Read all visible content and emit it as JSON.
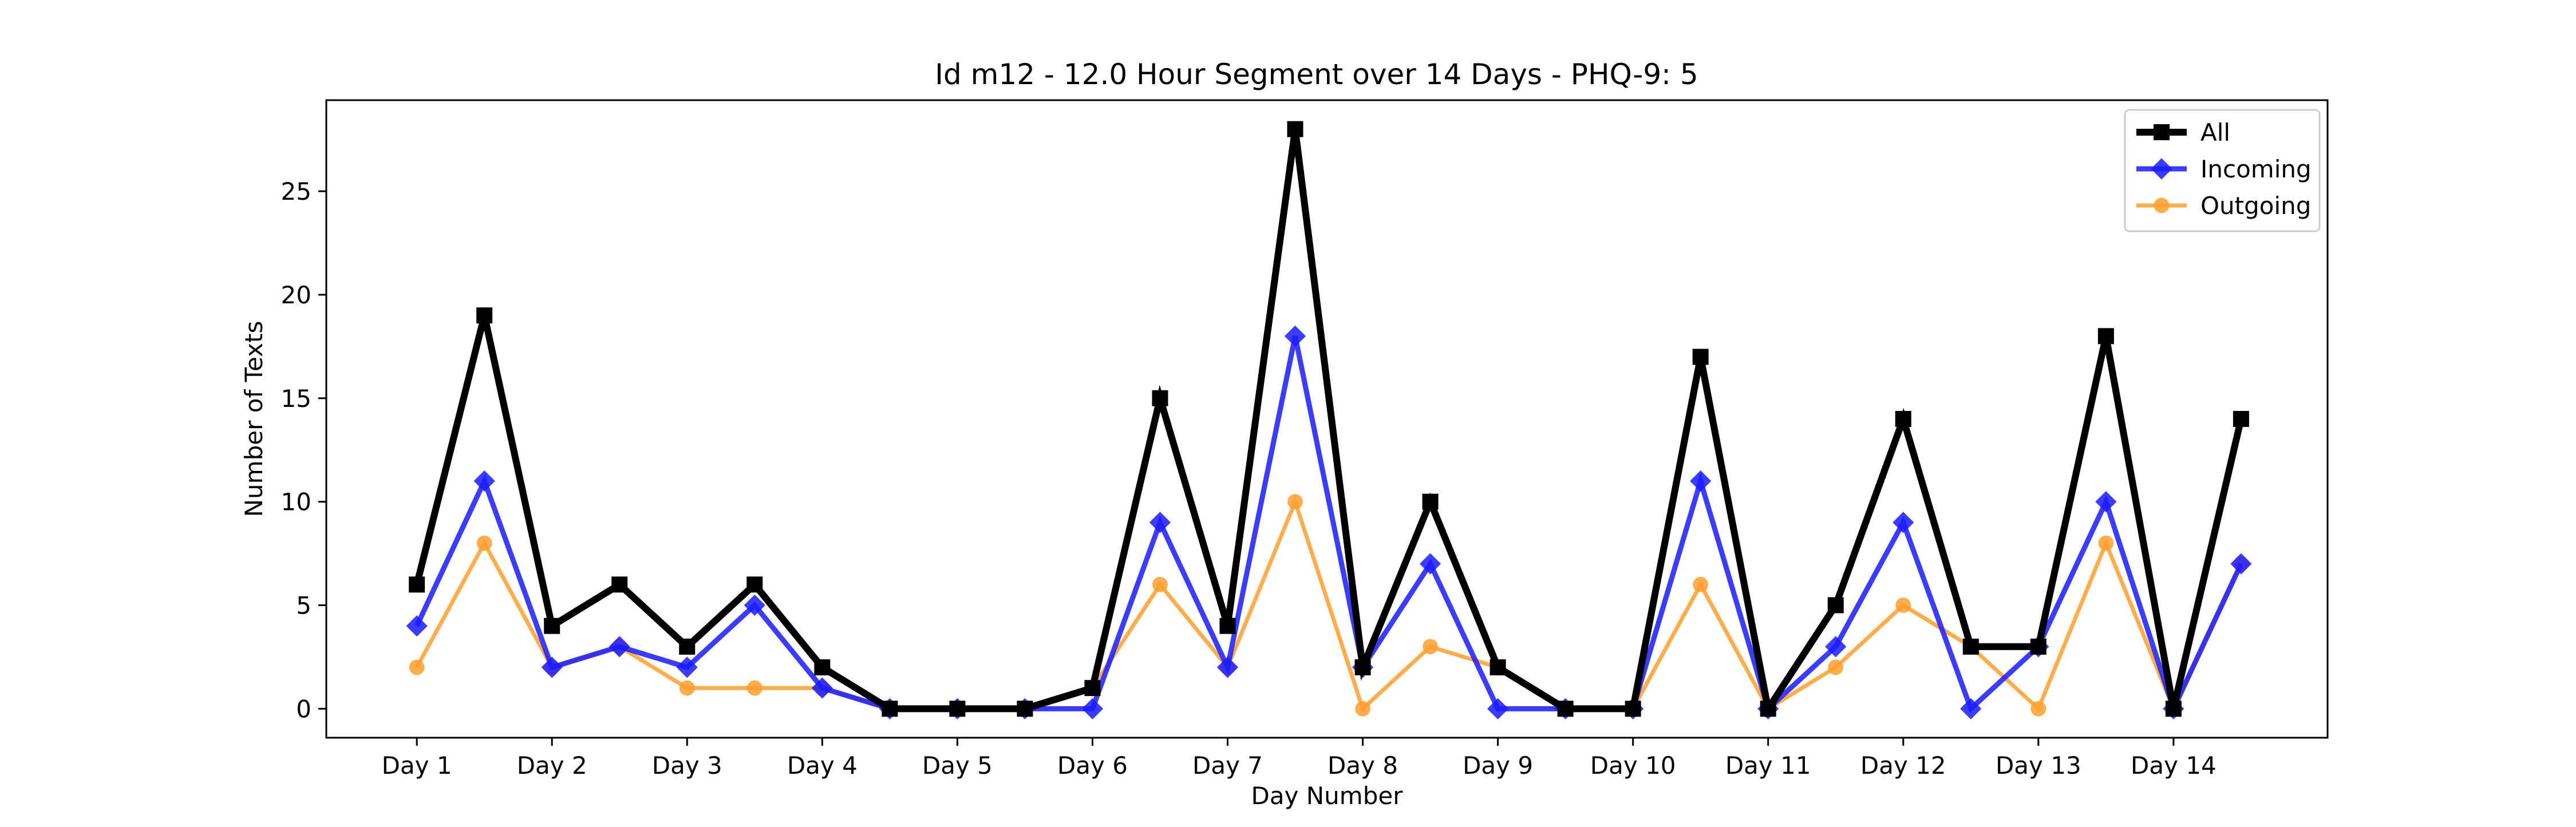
{
  "chart_data": {
    "type": "line",
    "title": "Id m12 - 12.0 Hour Segment over 14 Days - PHQ-9: 5",
    "xlabel": "Day Number",
    "ylabel": "Number of Texts",
    "x": [
      1,
      1.5,
      2,
      2.5,
      3,
      3.5,
      4,
      4.5,
      5,
      5.5,
      6,
      6.5,
      7,
      7.5,
      8,
      8.5,
      9,
      9.5,
      10,
      10.5,
      11,
      11.5,
      12,
      12.5,
      13,
      13.5,
      14,
      14.5
    ],
    "xlim": [
      0.33,
      15.14
    ],
    "ylim": [
      -1.4,
      29.4
    ],
    "xticks": [
      1,
      2,
      3,
      4,
      5,
      6,
      7,
      8,
      9,
      10,
      11,
      12,
      13,
      14
    ],
    "xtick_labels": [
      "Day 1",
      "Day 2",
      "Day 3",
      "Day 4",
      "Day 5",
      "Day 6",
      "Day 7",
      "Day 8",
      "Day 9",
      "Day 10",
      "Day 11",
      "Day 12",
      "Day 13",
      "Day 14"
    ],
    "yticks": [
      0,
      5,
      10,
      15,
      20,
      25
    ],
    "ytick_labels": [
      "0",
      "5",
      "10",
      "15",
      "20",
      "25"
    ],
    "grid": false,
    "legend_position": "top-right",
    "series": [
      {
        "name": "All",
        "color": "#000000",
        "marker": "square",
        "values": [
          6,
          19,
          4,
          6,
          3,
          6,
          2,
          0,
          0,
          0,
          1,
          15,
          4,
          28,
          2,
          10,
          2,
          0,
          0,
          17,
          0,
          5,
          14,
          3,
          3,
          18,
          0,
          14
        ]
      },
      {
        "name": "Incoming",
        "color": "#1a1aff",
        "marker": "diamond",
        "values": [
          4,
          11,
          2,
          3,
          2,
          5,
          1,
          0,
          0,
          0,
          0,
          9,
          2,
          18,
          2,
          7,
          0,
          0,
          0,
          11,
          0,
          3,
          9,
          0,
          3,
          10,
          0,
          7
        ]
      },
      {
        "name": "Outgoing",
        "color": "#ff9f2e",
        "marker": "circle",
        "values": [
          2,
          8,
          2,
          3,
          1,
          1,
          1,
          0,
          0,
          0,
          1,
          6,
          2,
          10,
          0,
          3,
          2,
          0,
          0,
          6,
          0,
          2,
          5,
          3,
          0,
          8,
          0,
          7
        ]
      }
    ]
  }
}
